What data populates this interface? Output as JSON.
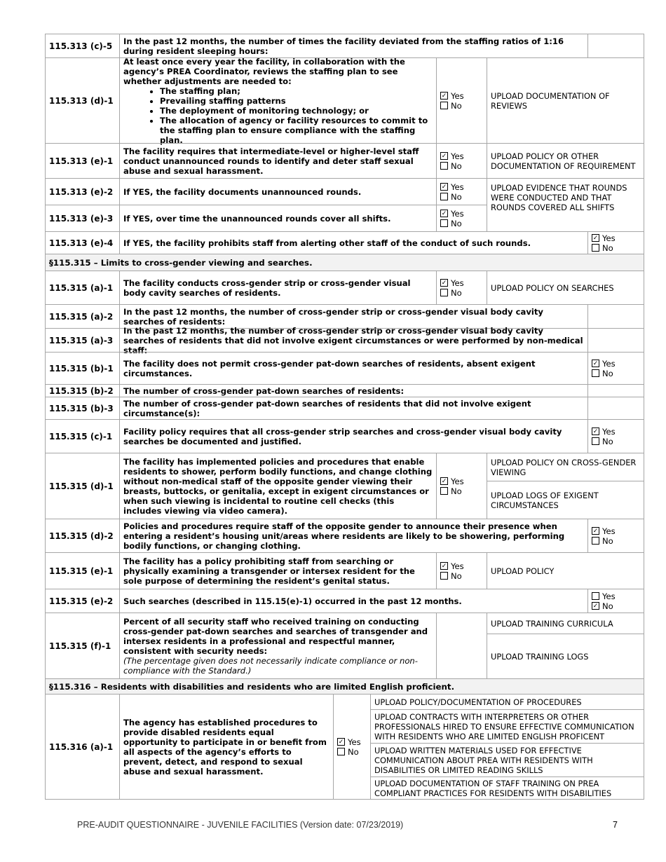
{
  "rows": [
    {
      "id": "115.313 (c)-5",
      "question": "In the past 12 months, the number of times the facility deviated from the staffing ratios of 1:16 during resident sleeping hours:"
    },
    {
      "id": "115.313 (d)-1",
      "question": "At least once every year the facility, in collaboration with the agency’s PREA Coordinator, reviews the staffing plan to see whether adjustments are needed to:",
      "bullets": [
        "The staffing plan;",
        "Prevailing staffing patterns",
        "The deployment of monitoring technology; or",
        "The allocation of agency or facility resources to commit to the staffing plan to ensure compliance with the staffing plan."
      ],
      "answer": "Yes",
      "uploads": [
        "UPLOAD DOCUMENTATION OF REVIEWS"
      ]
    },
    {
      "id": "115.313 (e)-1",
      "question": "The facility requires that intermediate-level or higher-level staff conduct unannounced rounds to identify and deter staff sexual abuse and sexual harassment.",
      "answer": "Yes",
      "uploads": [
        "UPLOAD POLICY OR OTHER DOCUMENTATION OF REQUIREMENT"
      ]
    },
    {
      "id": "115.313 (e)-2",
      "question": "If YES, the facility documents unannounced rounds.",
      "answer": "Yes",
      "uploads": [
        "UPLOAD EVIDENCE THAT  ROUNDS WERE CONDUCTED AND THAT ROUNDS COVERED ALL SHIFTS"
      ]
    },
    {
      "id": "115.313 (e)-3",
      "question": "If YES, over time the unannounced rounds cover all shifts.",
      "answer": "Yes"
    },
    {
      "id": "115.313 (e)-4",
      "question": "If YES, the facility prohibits staff from alerting other staff of the conduct of such rounds.",
      "answer": "Yes"
    },
    {
      "section": "§115.315 – Limits to cross-gender viewing and searches."
    },
    {
      "id": "115.315 (a)-1",
      "question": "The facility conducts cross-gender strip or cross-gender visual body cavity searches of residents.",
      "answer": "Yes",
      "uploads": [
        "UPLOAD POLICY ON SEARCHES"
      ]
    },
    {
      "id": "115.315 (a)-2",
      "question": "In the past 12 months, the number of cross-gender strip or cross-gender visual body cavity searches of residents:"
    },
    {
      "id": "115.315 (a)-3",
      "question": "In the past 12 months, the number of cross-gender strip or cross-gender visual body cavity searches of residents that did not involve exigent circumstances or were performed by non-medical staff:"
    },
    {
      "id": "115.315 (b)-1",
      "question": "The facility does not permit cross-gender pat-down searches of residents, absent exigent circumstances.",
      "answer": "Yes"
    },
    {
      "id": "115.315 (b)-2",
      "question": "The number of cross-gender pat-down searches of residents:"
    },
    {
      "id": "115.315 (b)-3",
      "question": "The number of cross-gender pat-down searches of residents that did not involve exigent circumstance(s):"
    },
    {
      "id": "115.315 (c)-1",
      "question": "Facility policy requires that all cross-gender strip searches and cross-gender visual body cavity searches be documented and justified.",
      "answer": "Yes"
    },
    {
      "id": "115.315 (d)-1",
      "question": "The facility has implemented policies and procedures that enable residents to shower, perform bodily functions, and change clothing without non-medical staff of the opposite gender viewing their breasts, buttocks, or genitalia, except in exigent circumstances or when such viewing is incidental to routine cell checks (this includes viewing via video camera).",
      "answer": "Yes",
      "uploads": [
        "UPLOAD POLICY ON CROSS-GENDER VIEWING",
        "UPLOAD LOGS OF EXIGENT CIRCUMSTANCES"
      ]
    },
    {
      "id": "115.315 (d)-2",
      "question": "Policies and procedures require staff of the opposite gender to announce their presence when entering a resident’s housing unit/areas where residents are likely to be showering, performing bodily functions, or changing clothing.",
      "answer": "Yes"
    },
    {
      "id": "115.315 (e)-1",
      "question": "The facility has a policy prohibiting staff from searching or physically examining a transgender or intersex resident for the sole purpose of determining the resident’s genital status.",
      "answer": "Yes",
      "uploads": [
        "UPLOAD POLICY"
      ]
    },
    {
      "id": "115.315 (e)-2",
      "question": "Such searches (described in 115.15(e)-1) occurred in the past 12 months.",
      "answer": "No"
    },
    {
      "id": "115.315 (f)-1",
      "question": "Percent of all security staff who received training on conducting cross-gender pat-down searches and searches of transgender and intersex residents in a professional and respectful manner, consistent with security needs:",
      "note": "(The percentage given does not necessarily indicate compliance or non-compliance with the Standard.)",
      "uploads": [
        "UPLOAD TRAINING CURRICULA",
        "UPLOAD TRAINING LOGS"
      ]
    },
    {
      "section": "§115.316 – Residents with disabilities and residents who are limited English proficient."
    },
    {
      "id": "115.316 (a)-1",
      "question": "The agency has established procedures to provide disabled residents equal opportunity to participate in or benefit from all aspects of the agency’s efforts to prevent, detect, and respond to sexual abuse and sexual harassment.",
      "answer": "Yes",
      "uploads": [
        "UPLOAD POLICY/DOCUMENTATION OF PROCEDURES",
        "UPLOAD CONTRACTS WITH INTERPRETERS OR OTHER PROFESSIONALS HIRED TO ENSURE EFFECTIVE COMMUNICATION WITH RESIDENTS WHO ARE LIMITED ENGLISH PROFICENT",
        "UPLOAD WRITTEN MATERIALS USED FOR EFFECTIVE COMMUNICATION ABOUT PREA WITH RESIDENTS WITH DISABILITIES OR LIMITED READING SKILLS",
        "UPLOAD DOCUMENTATION OF STAFF TRAINING ON PREA COMPLIANT PRACTICES FOR RESIDENTS WITH DISABILITIES"
      ]
    }
  ],
  "options": {
    "yes": "Yes",
    "no": "No"
  },
  "footer": {
    "text": "PRE-AUDIT QUESTIONNAIRE - JUVENILE FACILITIES (Version date: 07/23/2019)",
    "page": "7"
  }
}
